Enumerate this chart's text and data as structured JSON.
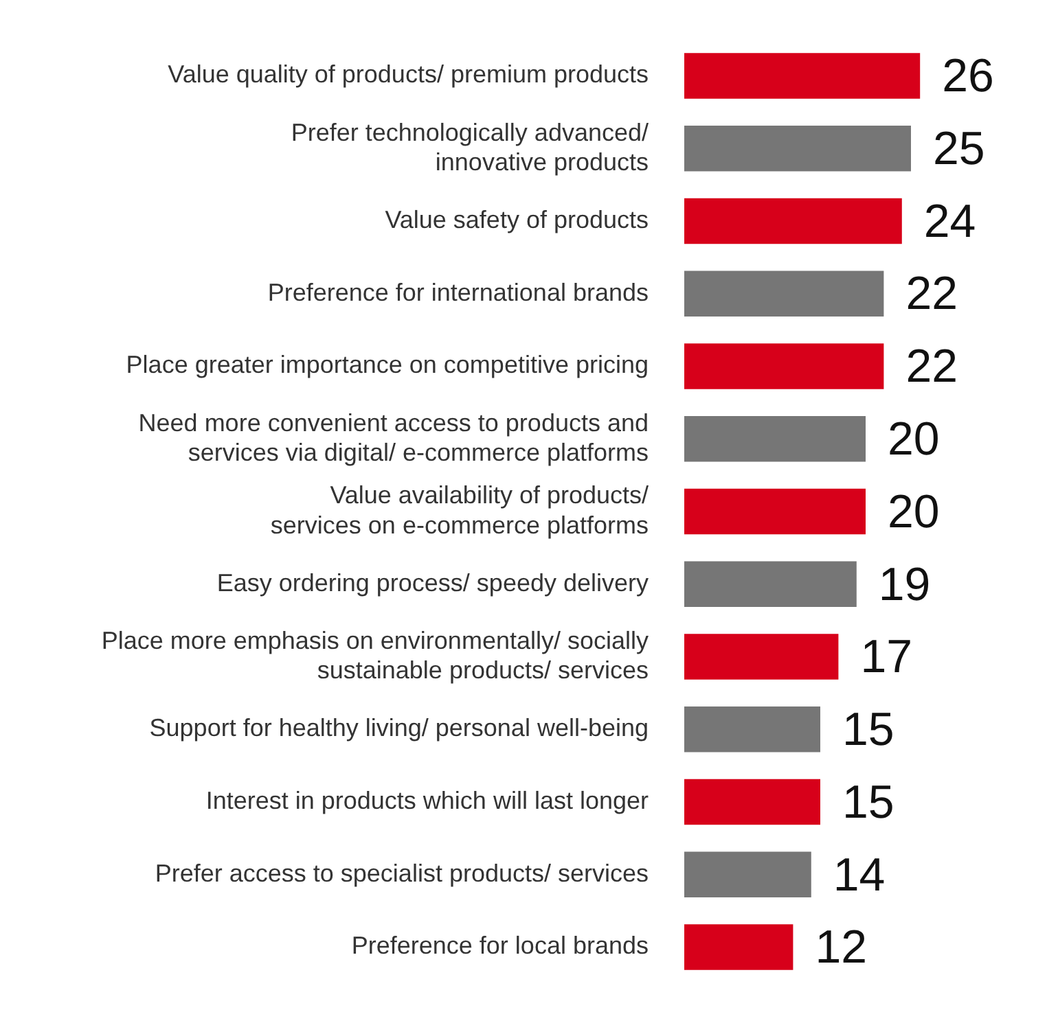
{
  "chart_data": {
    "type": "bar",
    "orientation": "horizontal",
    "data_labels": true,
    "legend": false,
    "tick_labels": "y",
    "categories": [
      "Value quality of products/ premium products",
      "Prefer technologically advanced/\ninnovative products",
      "Value safety of products",
      "Preference for international brands",
      "Place greater importance on competitive pricing",
      "Need more convenient access to products and\nservices via digital/ e-commerce platforms",
      "Value availability of products/\nservices on e-commerce platforms",
      "Easy ordering process/ speedy delivery",
      "Place more emphasis on environmentally/ socially\nsustainable products/ services",
      "Support for healthy living/ personal well-being",
      "Interest in products which will last longer",
      "Prefer access to specialist products/ services",
      "Preference for local brands"
    ],
    "values": [
      26,
      25,
      24,
      22,
      22,
      20,
      20,
      19,
      17,
      15,
      15,
      14,
      12
    ],
    "colors": [
      "#d7001a",
      "#767676",
      "#d7001a",
      "#767676",
      "#d7001a",
      "#767676",
      "#d7001a",
      "#767676",
      "#d7001a",
      "#767676",
      "#d7001a",
      "#767676",
      "#d7001a"
    ]
  }
}
